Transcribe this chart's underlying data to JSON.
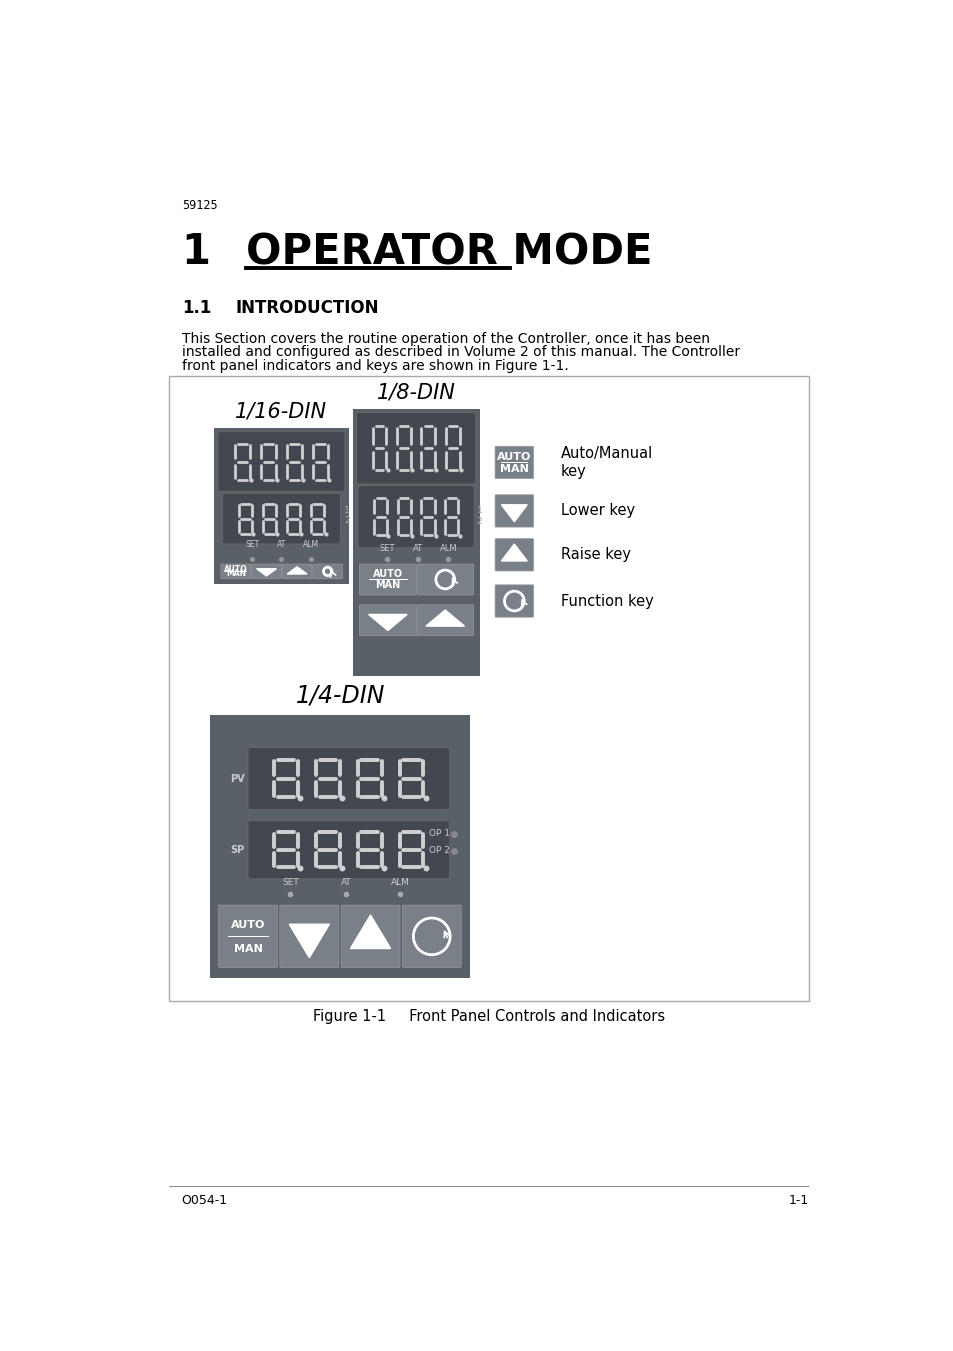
{
  "page_number_top": "59125",
  "chapter_num": "1",
  "chapter_text": "OPERATOR MODE",
  "section_title_num": "1.1",
  "section_title_text": "INTRODUCTION",
  "body_text_line1": "This Section covers the routine operation of the Controller, once it has been",
  "body_text_line2": "installed and configured as described in Volume 2 of this manual. The Controller",
  "body_text_line3": "front panel indicators and keys are shown in Figure 1-1.",
  "figure_caption": "Figure 1-1     Front Panel Controls and Indicators",
  "page_footer_left": "O054-1",
  "page_footer_right": "1-1",
  "label_16din": "1/16-DIN",
  "label_8din": "1/8-DIN",
  "label_4din": "1/4-DIN",
  "key_label_auto": "Auto/Manual\nkey",
  "key_label_lower": "Lower key",
  "key_label_raise": "Raise key",
  "key_label_func": "Function key",
  "panel_color": "#5a6068",
  "key_bg": "#7a8088",
  "display_bg": "#424750",
  "seg_color": "#d0d0d0",
  "border_color": "#b0b0b0"
}
